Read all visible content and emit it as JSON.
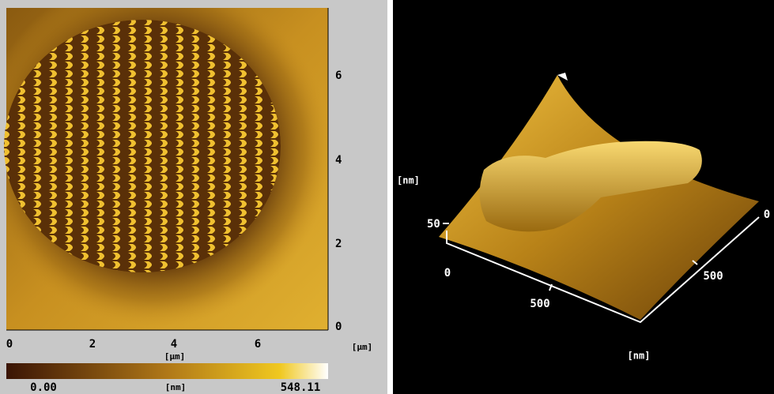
{
  "left_panel": {
    "x_ticks": [
      0,
      2,
      4,
      6
    ],
    "x_unit": "[µm]",
    "x_unit_right": "[µm]",
    "y_ticks": [
      0,
      2,
      4,
      6
    ],
    "colorbar": {
      "min_label": "0.00",
      "unit": "[nm]",
      "max_label": "548.11"
    }
  },
  "right_panel": {
    "z_unit": "[nm]",
    "z_tick": 50,
    "origin_label": 0,
    "front_tick": 500,
    "side_tick": 500,
    "far_label": 0,
    "axis_unit": "[nm]"
  }
}
